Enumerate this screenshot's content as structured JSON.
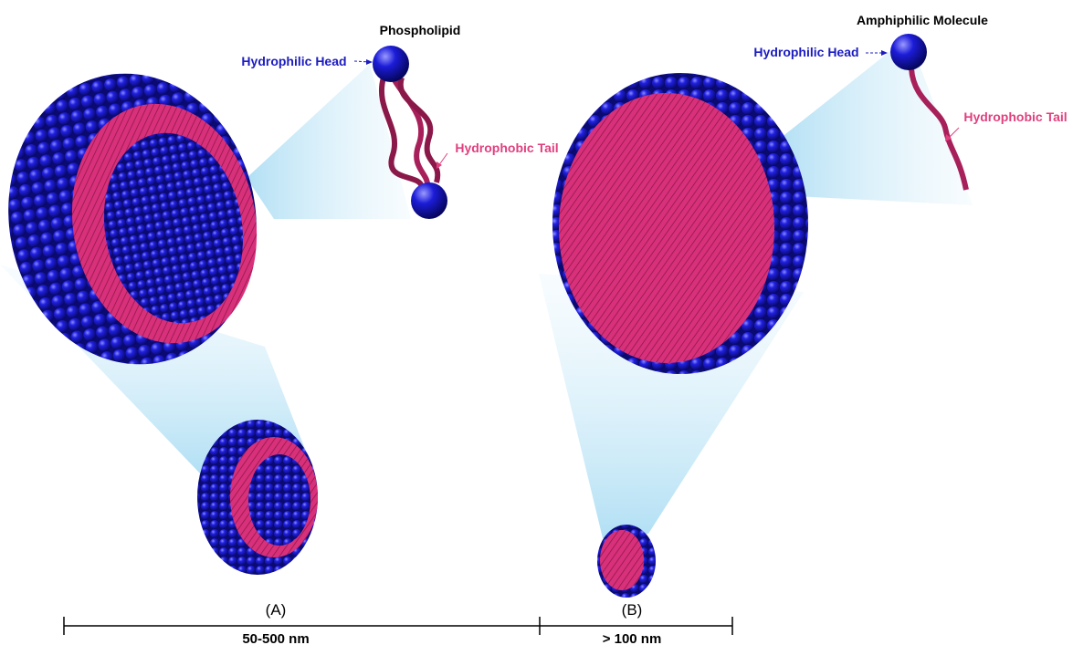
{
  "panels": [
    {
      "label": "(A)",
      "size": "50-500 nm",
      "molecule": {
        "title": "Phospholipid",
        "head": "Hydrophilic Head",
        "tail": "Hydrophobic Tail"
      }
    },
    {
      "label": "(B)",
      "size": "> 100 nm",
      "molecule": {
        "title": "Amphiphilic Molecule",
        "head": "Hydrophilic Head",
        "tail": "Hydrophobic Tail"
      }
    }
  ]
}
